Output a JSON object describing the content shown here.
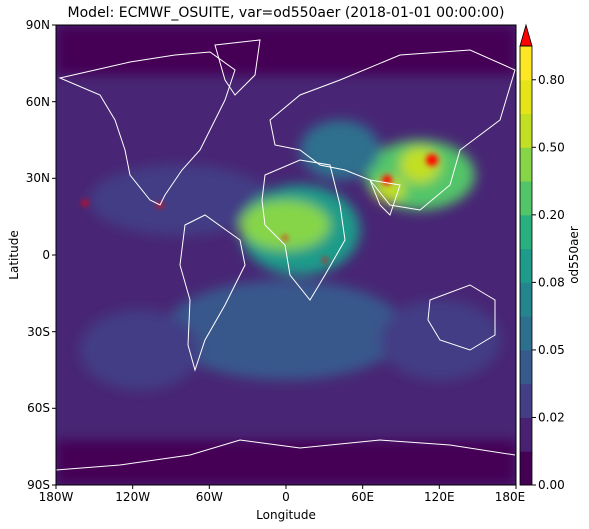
{
  "title": "Model: ECMWF_OSUITE, var=od550aer (2018-01-01 00:00:00)",
  "xlabel": "Longitude",
  "ylabel": "Latitude",
  "colorbar_label": "od550aer",
  "x_ticks": [
    "180W",
    "120W",
    "60W",
    "0",
    "60E",
    "120E",
    "180E"
  ],
  "y_ticks": [
    "90N",
    "60N",
    "30N",
    "0",
    "30S",
    "60S",
    "90S"
  ],
  "colorbar_ticks": [
    "0.00",
    "0.02",
    "0.05",
    "0.08",
    "0.20",
    "0.50",
    "0.80"
  ],
  "colors": {
    "background": "#482675",
    "coastline": "#ffffff",
    "extend_high": "#ff0000"
  },
  "chart_data": {
    "type": "heatmap",
    "projection": "plate-carree",
    "variable": "od550aer",
    "xlim": [
      -180,
      180
    ],
    "ylim": [
      -90,
      90
    ],
    "x_ticks_deg": [
      -180,
      -120,
      -60,
      0,
      60,
      120,
      180
    ],
    "y_ticks_deg": [
      90,
      60,
      30,
      0,
      -30,
      -60,
      -90
    ],
    "colorbar": {
      "levels": [
        0.0,
        0.01,
        0.02,
        0.03,
        0.05,
        0.06,
        0.08,
        0.12,
        0.2,
        0.3,
        0.5,
        0.65,
        0.8,
        1.0
      ],
      "tick_values": [
        0.0,
        0.02,
        0.05,
        0.08,
        0.2,
        0.5,
        0.8
      ],
      "colors": [
        "#440154",
        "#482173",
        "#433e85",
        "#38598c",
        "#2d708e",
        "#25858e",
        "#1e9b8a",
        "#2ab07f",
        "#52c569",
        "#86d549",
        "#c2df23",
        "#e4e419",
        "#fde725"
      ],
      "extend": "max",
      "colormap": "viridis"
    },
    "grid": false
  }
}
